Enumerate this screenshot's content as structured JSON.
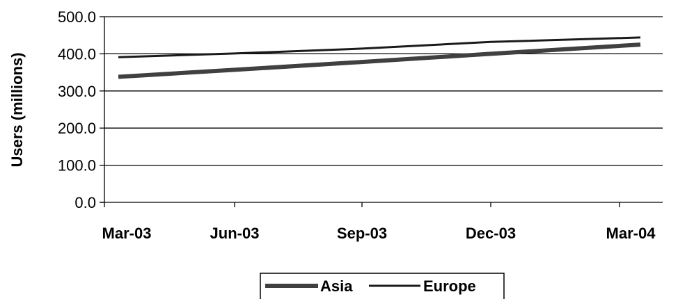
{
  "chart_data": {
    "type": "line",
    "ylabel": "Users (millions)",
    "categories": [
      "Mar-03",
      "Jun-03",
      "Sep-03",
      "Dec-03",
      "Mar-04"
    ],
    "ylim": [
      0,
      500
    ],
    "yticks": [
      "0.0",
      "100.0",
      "200.0",
      "300.0",
      "400.0",
      "500.0"
    ],
    "grid": true,
    "legend_position": "bottom",
    "series": [
      {
        "name": "Asia",
        "values": [
          338,
          357,
          378,
          400,
          425
        ],
        "color": "#404040",
        "style": "thick"
      },
      {
        "name": "Europe",
        "values": [
          391,
          401,
          414,
          432,
          444
        ],
        "color": "#1a1a1a",
        "style": "thin"
      }
    ]
  }
}
